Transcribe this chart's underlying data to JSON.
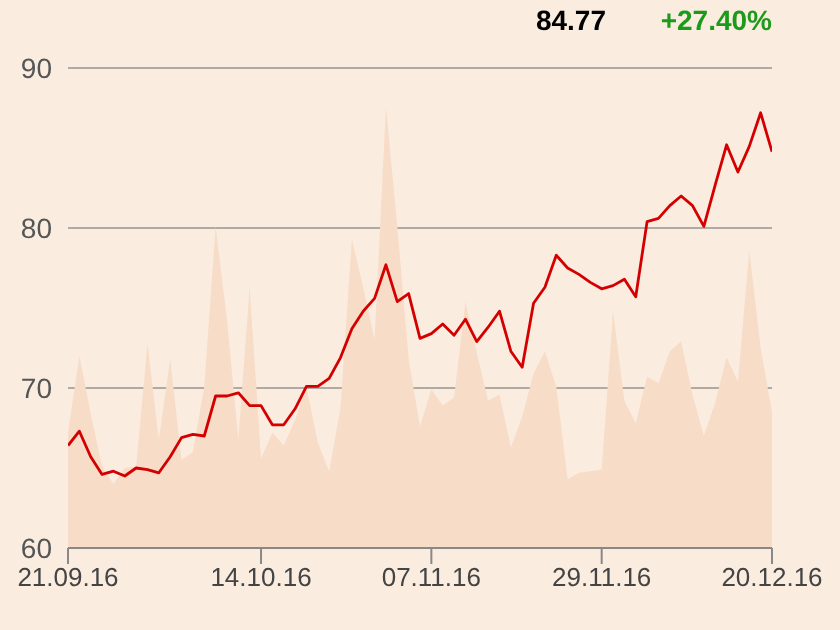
{
  "chart_data": {
    "type": "line",
    "annotations": [
      "84.77",
      "+27.40%"
    ],
    "categories": [
      "21.09.16",
      null,
      null,
      null,
      null,
      null,
      null,
      null,
      null,
      null,
      null,
      null,
      null,
      null,
      null,
      null,
      null,
      "14.10.16",
      null,
      null,
      null,
      null,
      null,
      null,
      null,
      null,
      null,
      null,
      null,
      null,
      null,
      null,
      "07.11.16",
      null,
      null,
      null,
      null,
      null,
      null,
      null,
      null,
      null,
      null,
      null,
      null,
      null,
      null,
      "29.11.16",
      null,
      null,
      null,
      null,
      null,
      null,
      null,
      null,
      null,
      null,
      null,
      null,
      null,
      null,
      "20.12.16"
    ],
    "series": [
      {
        "type": "area",
        "color": "#f7dcc8",
        "values": [
          67.2,
          72.0,
          68.4,
          65.1,
          64.0,
          65.0,
          65.1,
          72.8,
          66.8,
          71.8,
          65.5,
          66.0,
          70.1,
          80.1,
          74.3,
          66.8,
          76.3,
          65.6,
          67.2,
          66.4,
          68.0,
          70.1,
          66.6,
          64.8,
          68.8,
          79.3,
          76.3,
          73.0,
          87.6,
          80.1,
          71.8,
          67.6,
          69.9,
          68.9,
          69.4,
          75.4,
          72.2,
          69.2,
          69.6,
          66.3,
          68.2,
          70.9,
          72.3,
          70.1,
          64.3,
          64.7,
          64.8,
          64.9,
          74.8,
          69.2,
          67.8,
          70.7,
          70.3,
          72.3,
          72.9,
          69.6,
          67.0,
          69.1,
          71.9,
          70.4,
          78.6,
          72.5,
          68.5
        ]
      },
      {
        "color": "#d40000",
        "values": [
          66.4,
          67.3,
          65.7,
          64.6,
          64.8,
          64.5,
          65.0,
          64.9,
          64.7,
          65.7,
          66.9,
          67.1,
          67.0,
          69.5,
          69.5,
          69.7,
          68.9,
          68.9,
          67.7,
          67.7,
          68.7,
          70.1,
          70.1,
          70.6,
          71.9,
          73.7,
          74.8,
          75.6,
          77.7,
          75.4,
          75.9,
          73.1,
          73.4,
          74.0,
          73.3,
          74.3,
          72.9,
          73.8,
          74.8,
          72.3,
          71.3,
          75.3,
          76.3,
          78.3,
          77.5,
          77.1,
          76.6,
          76.2,
          76.4,
          76.8,
          75.7,
          80.4,
          80.6,
          81.4,
          82.0,
          81.4,
          80.1,
          82.7,
          85.2,
          83.5,
          85.1,
          87.2,
          84.77
        ]
      }
    ],
    "ylim": [
      60,
      90
    ],
    "yticks": [
      60,
      70,
      80,
      90
    ],
    "grid": "y",
    "marker": "none",
    "line_style": "solid"
  }
}
